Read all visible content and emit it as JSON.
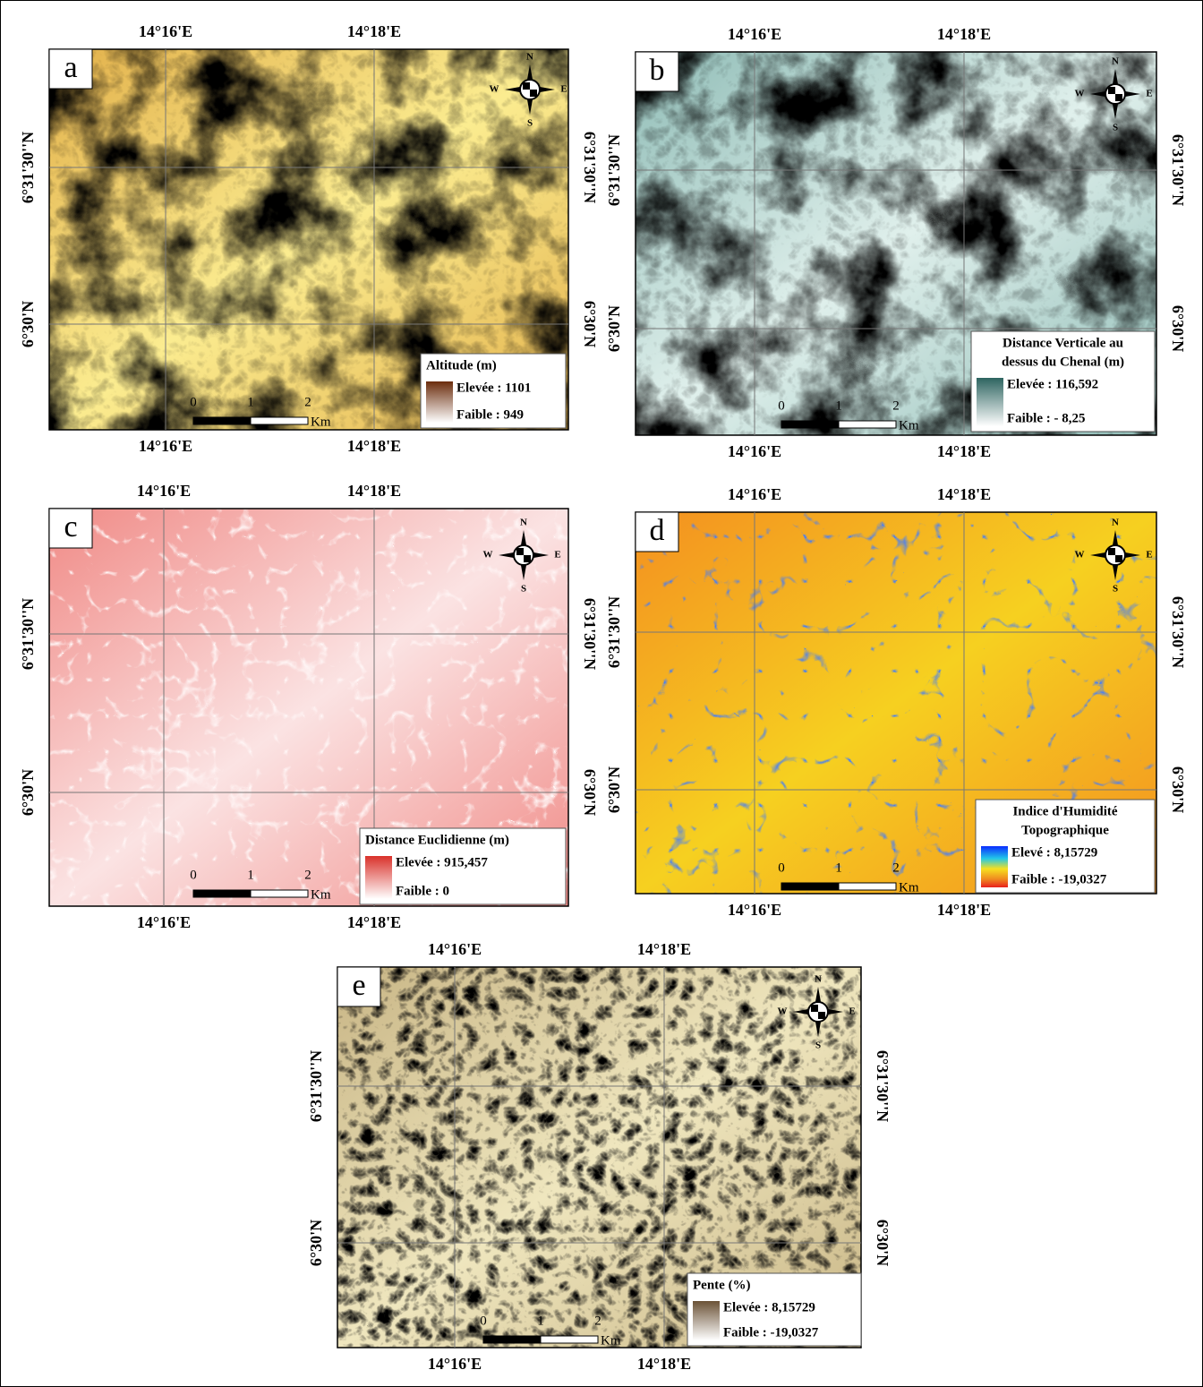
{
  "panels": [
    {
      "letter": "a",
      "top_labels": [
        "14°16'E",
        "14°18'E"
      ],
      "bottom_labels": [
        "14°16'E",
        "14°18'E"
      ],
      "left_labels": [
        "6°31'30''N",
        "6°30'N"
      ],
      "right_labels": [
        "6°31'30''N",
        "6°30'N"
      ],
      "compass": [
        "N",
        "S",
        "W",
        "E"
      ],
      "legend": {
        "title": [
          "Altitude (m)"
        ],
        "high": "Elevée : 1101",
        "low": "Faible : 949"
      },
      "scale": {
        "ticks": [
          "0",
          "1",
          "2"
        ],
        "unit": "Km"
      }
    },
    {
      "letter": "b",
      "top_labels": [
        "14°16'E",
        "14°18'E"
      ],
      "bottom_labels": [
        "14°16'E",
        "14°18'E"
      ],
      "left_labels": [
        "6°31'30''N",
        "6°30'N"
      ],
      "right_labels": [
        "6°31'30''N",
        "6°30'N"
      ],
      "compass": [
        "N",
        "S",
        "W",
        "E"
      ],
      "legend": {
        "title": [
          "Distance Verticale au",
          "dessus du Chenal  (m)"
        ],
        "high": "Elevée : 116,592",
        "low": "Faible : - 8,25"
      },
      "scale": {
        "ticks": [
          "0",
          "1",
          "2"
        ],
        "unit": "Km"
      }
    },
    {
      "letter": "c",
      "top_labels": [
        "14°16'E",
        "14°18'E"
      ],
      "bottom_labels": [
        "14°16'E",
        "14°18'E"
      ],
      "left_labels": [
        "6°31'30''N",
        "6°30'N"
      ],
      "right_labels": [
        "6°31'30''N",
        "6°30'N"
      ],
      "compass": [
        "N",
        "S",
        "W",
        "E"
      ],
      "legend": {
        "title": [
          "Distance Euclidienne (m)"
        ],
        "high": "Elevée : 915,457",
        "low": "Faible : 0"
      },
      "scale": {
        "ticks": [
          "0",
          "1",
          "2"
        ],
        "unit": "Km"
      }
    },
    {
      "letter": "d",
      "top_labels": [
        "14°16'E",
        "14°18'E"
      ],
      "bottom_labels": [
        "14°16'E",
        "14°18'E"
      ],
      "left_labels": [
        "6°31'30''N",
        "6°30'N"
      ],
      "right_labels": [
        "6°31'30''N",
        "6°30'N"
      ],
      "compass": [
        "N",
        "S",
        "W",
        "E"
      ],
      "legend": {
        "title": [
          "Indice d'Humidité",
          "Topographique"
        ],
        "high": "Elevé : 8,15729",
        "low": "Faible : -19,0327"
      },
      "scale": {
        "ticks": [
          "0",
          "1",
          "2"
        ],
        "unit": "Km"
      }
    },
    {
      "letter": "e",
      "top_labels": [
        "14°16'E",
        "14°18'E"
      ],
      "bottom_labels": [
        "14°16'E",
        "14°18'E"
      ],
      "left_labels": [
        "6°31'30''N",
        "6°30'N"
      ],
      "right_labels": [
        "6°31'30''N",
        "6°30'N"
      ],
      "compass": [
        "N",
        "S",
        "W",
        "E"
      ],
      "legend": {
        "title": [
          "Pente (%)"
        ],
        "high": "Elevée : 8,15729",
        "low": "Faible : -19,0327"
      },
      "scale": {
        "ticks": [
          "0",
          "1",
          "2"
        ],
        "unit": "Km"
      }
    }
  ]
}
